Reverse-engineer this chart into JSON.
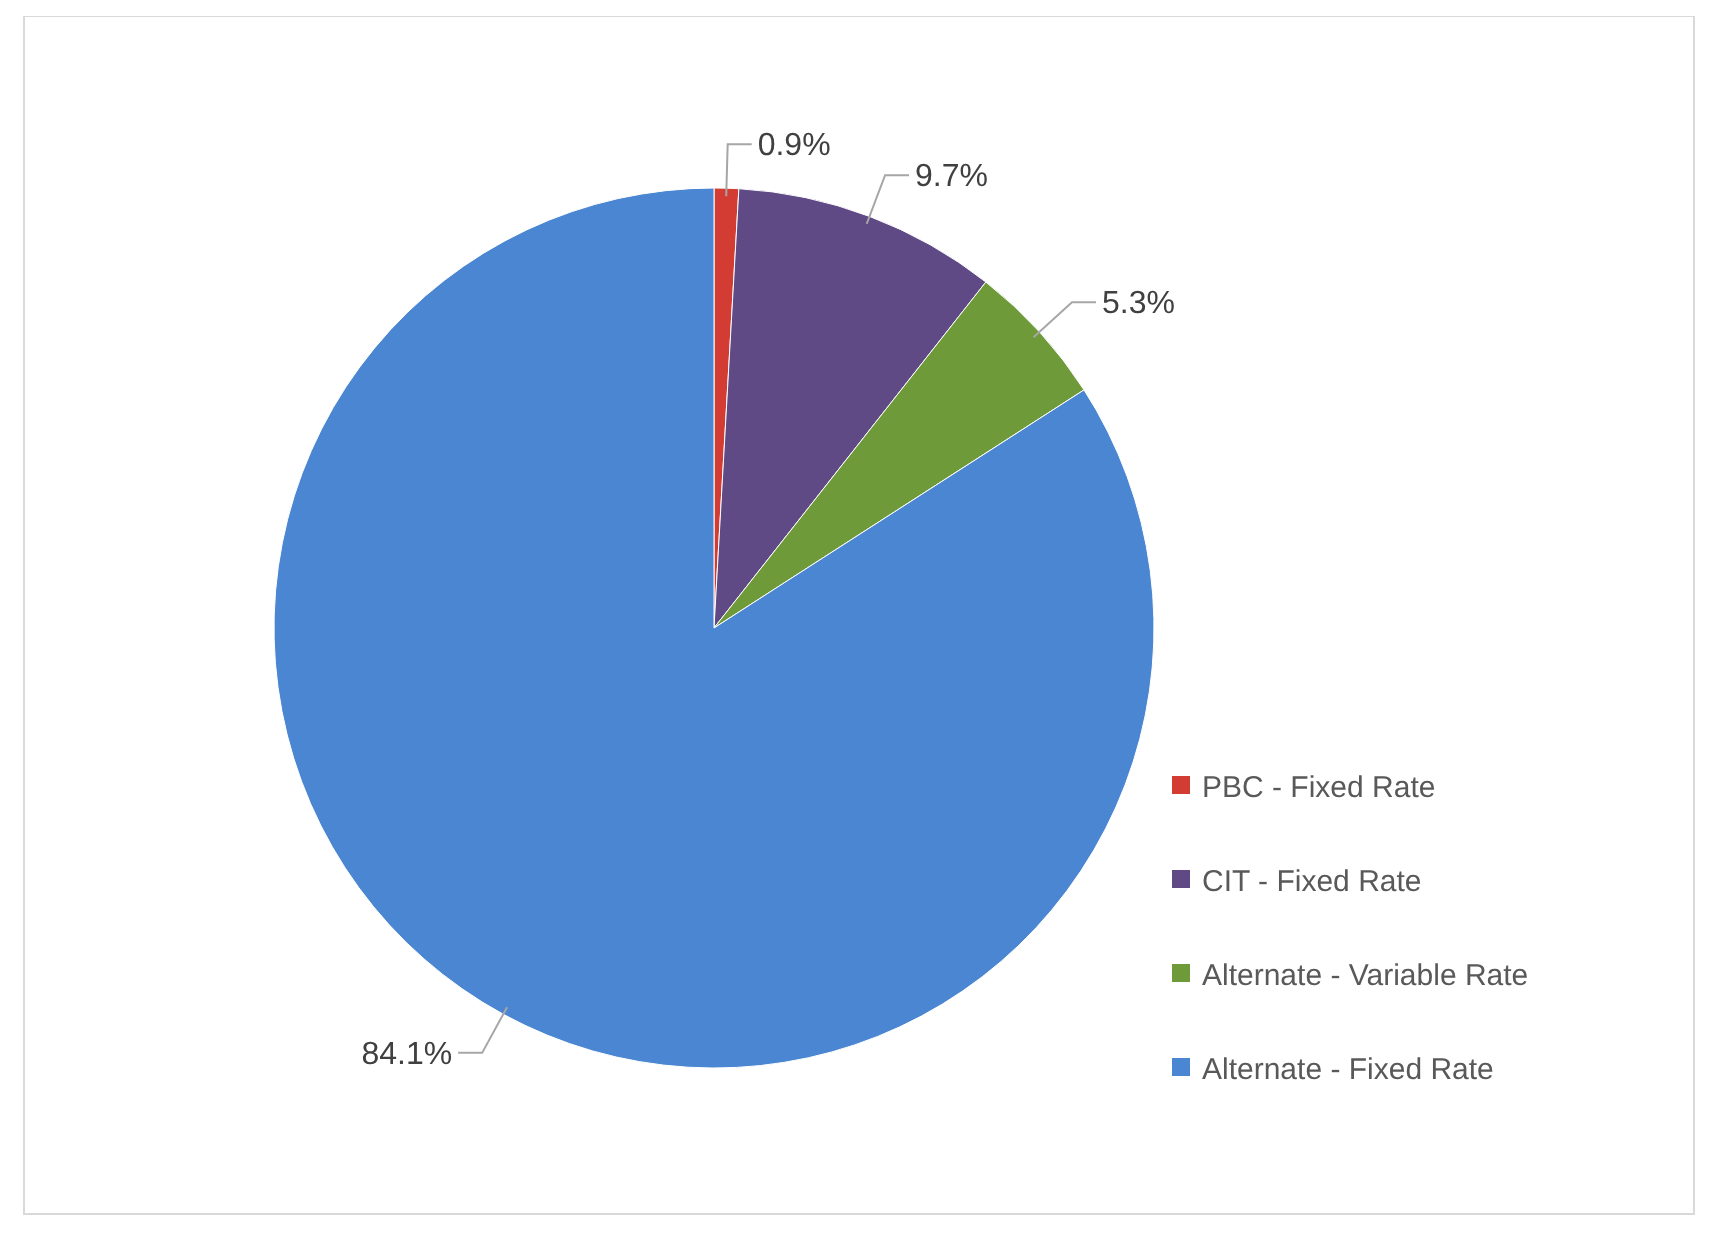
{
  "chart_data": {
    "type": "pie",
    "categories": [
      "PBC - Fixed Rate",
      "CIT - Fixed Rate",
      "Alternate - Variable Rate",
      "Alternate - Fixed Rate"
    ],
    "values": [
      0.9,
      9.7,
      5.3,
      84.1
    ],
    "colors": [
      "#d33c32",
      "#5f4a86",
      "#6f9a3a",
      "#4a86d1"
    ],
    "value_labels": [
      "0.9%",
      "9.7%",
      "5.3%",
      "84.1%"
    ],
    "legend": "right"
  }
}
